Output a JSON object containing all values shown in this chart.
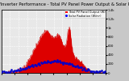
{
  "title": "Solar PV/Inverter Performance - Total PV Panel Power Output & Solar Radiation",
  "bg_color": "#c8c8c8",
  "plot_bg": "#e8e8e8",
  "grid_color": "#ffffff",
  "red_fill": "#dd0000",
  "red_line": "#cc0000",
  "blue_dot_color": "#0000cc",
  "ylim_left": [
    0,
    1400
  ],
  "ylim_right": [
    0,
    1400
  ],
  "ytick_labels_right": [
    "0",
    "200",
    "400",
    "600",
    "800",
    "1k",
    "1.2k",
    "1.4k"
  ],
  "num_points": 288,
  "title_fontsize": 3.8,
  "tick_fontsize": 2.8,
  "legend_colors": [
    "#ff0000",
    "#0000ff"
  ],
  "legend_items": [
    "Total PV Panel Output (W)",
    "Solar Radiation (W/m²)"
  ]
}
